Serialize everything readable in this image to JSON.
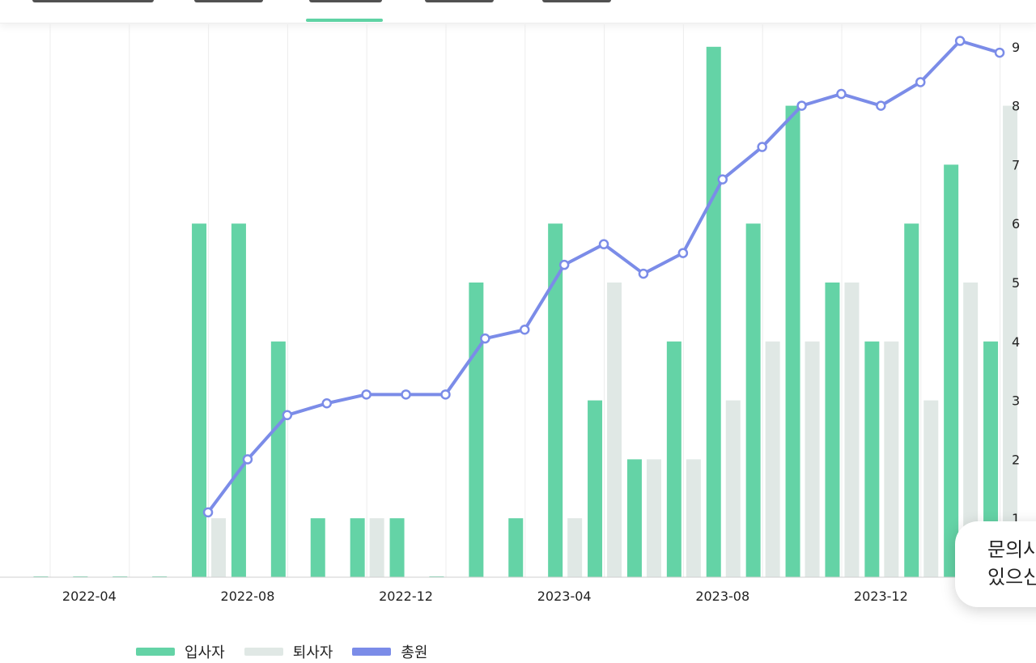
{
  "chart_data": {
    "type": "bar",
    "categories": [
      "2022-03",
      "2022-04",
      "2022-05",
      "2022-06",
      "2022-07",
      "2022-08",
      "2022-09",
      "2022-10",
      "2022-11",
      "2022-12",
      "2023-01",
      "2023-02",
      "2023-03",
      "2023-04",
      "2023-05",
      "2023-06",
      "2023-07",
      "2023-08",
      "2023-09",
      "2023-10",
      "2023-11",
      "2023-12",
      "2024-01",
      "2024-02",
      "2024-03"
    ],
    "x_tick_labels": [
      "2022-04",
      "2022-08",
      "2022-12",
      "2023-04",
      "2023-08",
      "2023-12"
    ],
    "y_ticks": [
      1,
      2,
      3,
      4,
      5,
      6,
      7,
      8,
      9
    ],
    "ylim": [
      0,
      9.4
    ],
    "series": [
      {
        "name": "입사자",
        "type": "bar",
        "color": "#64d3a6",
        "values": [
          0,
          0,
          0,
          0,
          6,
          6,
          4,
          1,
          1,
          1,
          0,
          5,
          1,
          6,
          3,
          2,
          4,
          9,
          6,
          8,
          5,
          4,
          6,
          7,
          4
        ]
      },
      {
        "name": "퇴사자",
        "type": "bar",
        "color": "#e0e8e5",
        "values": [
          0,
          0,
          0,
          0,
          1,
          0,
          0,
          0,
          1,
          0,
          0,
          0,
          0,
          1,
          5,
          2,
          2,
          3,
          4,
          4,
          5,
          4,
          3,
          5,
          8
        ]
      },
      {
        "name": "총원",
        "type": "line",
        "color": "#7b8ce8",
        "values": [
          null,
          null,
          null,
          null,
          1.1,
          2.0,
          2.75,
          2.95,
          3.1,
          3.1,
          3.1,
          4.05,
          4.2,
          5.3,
          5.65,
          5.15,
          5.5,
          6.75,
          7.3,
          8.0,
          8.2,
          8.0,
          8.4,
          9.1,
          8.9
        ]
      }
    ],
    "grid": true,
    "legend_position": "bottom-left"
  },
  "chat": {
    "line1": "문의사항이",
    "line2": "있으신가요?"
  }
}
